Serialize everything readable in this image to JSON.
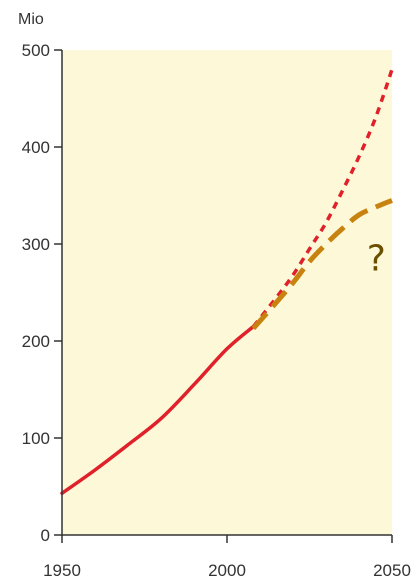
{
  "chart_data": {
    "type": "line",
    "title": "",
    "xlabel": "",
    "ylabel": "Mio",
    "xlim": [
      1950,
      2050
    ],
    "ylim": [
      0,
      500
    ],
    "x_ticks": [
      1950,
      2000,
      2050
    ],
    "y_ticks": [
      0,
      100,
      200,
      300,
      400,
      500
    ],
    "grid": false,
    "colors": {
      "plot_background": "#fdf9d8",
      "axis": "#333333",
      "historical": "#e0202a",
      "projection_high": "#e0202a",
      "projection_low": "#c8820f",
      "annotation": "#6b4f00"
    },
    "series": [
      {
        "style": "solid",
        "x": [
          1950,
          1960,
          1970,
          1980,
          1990,
          2000,
          2008
        ],
        "y": [
          43,
          67,
          93,
          120,
          155,
          192,
          215
        ]
      },
      {
        "style": "dotted",
        "x": [
          2008,
          2015,
          2020,
          2025,
          2030,
          2035,
          2040,
          2045,
          2050
        ],
        "y": [
          215,
          245,
          268,
          295,
          322,
          355,
          390,
          430,
          480
        ]
      },
      {
        "style": "dashed",
        "x": [
          2008,
          2015,
          2020,
          2025,
          2030,
          2035,
          2040,
          2045,
          2050
        ],
        "y": [
          213,
          240,
          260,
          282,
          300,
          316,
          330,
          338,
          345
        ]
      }
    ],
    "annotations": [
      {
        "text": "?",
        "x": 2046,
        "y": 285
      }
    ]
  }
}
